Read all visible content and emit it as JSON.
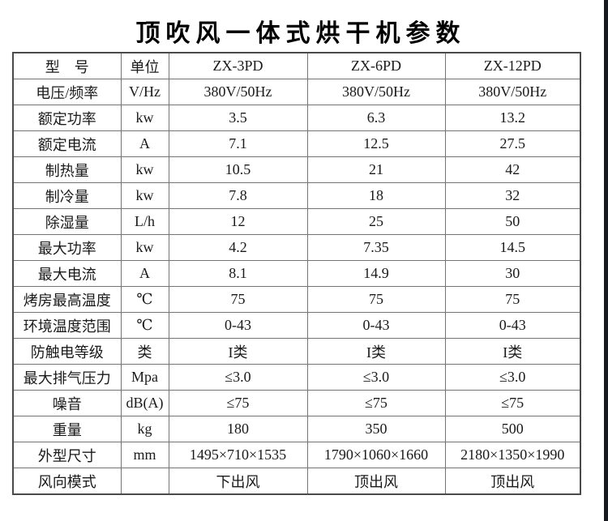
{
  "page": {
    "title": "顶吹风一体式烘干机参数",
    "background_color": "#ffffff",
    "right_edge_strip_color": "#181820",
    "table_border_color": "#4a4a4a"
  },
  "table": {
    "header": {
      "model_label": "型　号",
      "unit_label": "单位",
      "models": [
        "ZX-3PD",
        "ZX-6PD",
        "ZX-12PD"
      ]
    },
    "rows": [
      {
        "label": "电压/频率",
        "unit": "V/Hz",
        "values": [
          "380V/50Hz",
          "380V/50Hz",
          "380V/50Hz"
        ]
      },
      {
        "label": "额定功率",
        "unit": "kw",
        "values": [
          "3.5",
          "6.3",
          "13.2"
        ]
      },
      {
        "label": "额定电流",
        "unit": "A",
        "values": [
          "7.1",
          "12.5",
          "27.5"
        ]
      },
      {
        "label": "制热量",
        "unit": "kw",
        "values": [
          "10.5",
          "21",
          "42"
        ]
      },
      {
        "label": "制冷量",
        "unit": "kw",
        "values": [
          "7.8",
          "18",
          "32"
        ]
      },
      {
        "label": "除湿量",
        "unit": "L/h",
        "values": [
          "12",
          "25",
          "50"
        ]
      },
      {
        "label": "最大功率",
        "unit": "kw",
        "values": [
          "4.2",
          "7.35",
          "14.5"
        ]
      },
      {
        "label": "最大电流",
        "unit": "A",
        "values": [
          "8.1",
          "14.9",
          "30"
        ]
      },
      {
        "label": "烤房最高温度",
        "unit": "℃",
        "values": [
          "75",
          "75",
          "75"
        ]
      },
      {
        "label": "环境温度范围",
        "unit": "℃",
        "values": [
          "0-43",
          "0-43",
          "0-43"
        ]
      },
      {
        "label": "防触电等级",
        "unit": "类",
        "values": [
          "I类",
          "I类",
          "I类"
        ]
      },
      {
        "label": "最大排气压力",
        "unit": "Mpa",
        "values": [
          "≤3.0",
          "≤3.0",
          "≤3.0"
        ]
      },
      {
        "label": "噪音",
        "unit": "dB(A)",
        "values": [
          "≤75",
          "≤75",
          "≤75"
        ]
      },
      {
        "label": "重量",
        "unit": "kg",
        "values": [
          "180",
          "350",
          "500"
        ]
      },
      {
        "label": "外型尺寸",
        "unit": "mm",
        "values": [
          "1495×710×1535",
          "1790×1060×1660",
          "2180×1350×1990"
        ]
      },
      {
        "label": "风向模式",
        "unit": "",
        "values": [
          "下出风",
          "顶出风",
          "顶出风"
        ]
      }
    ]
  }
}
